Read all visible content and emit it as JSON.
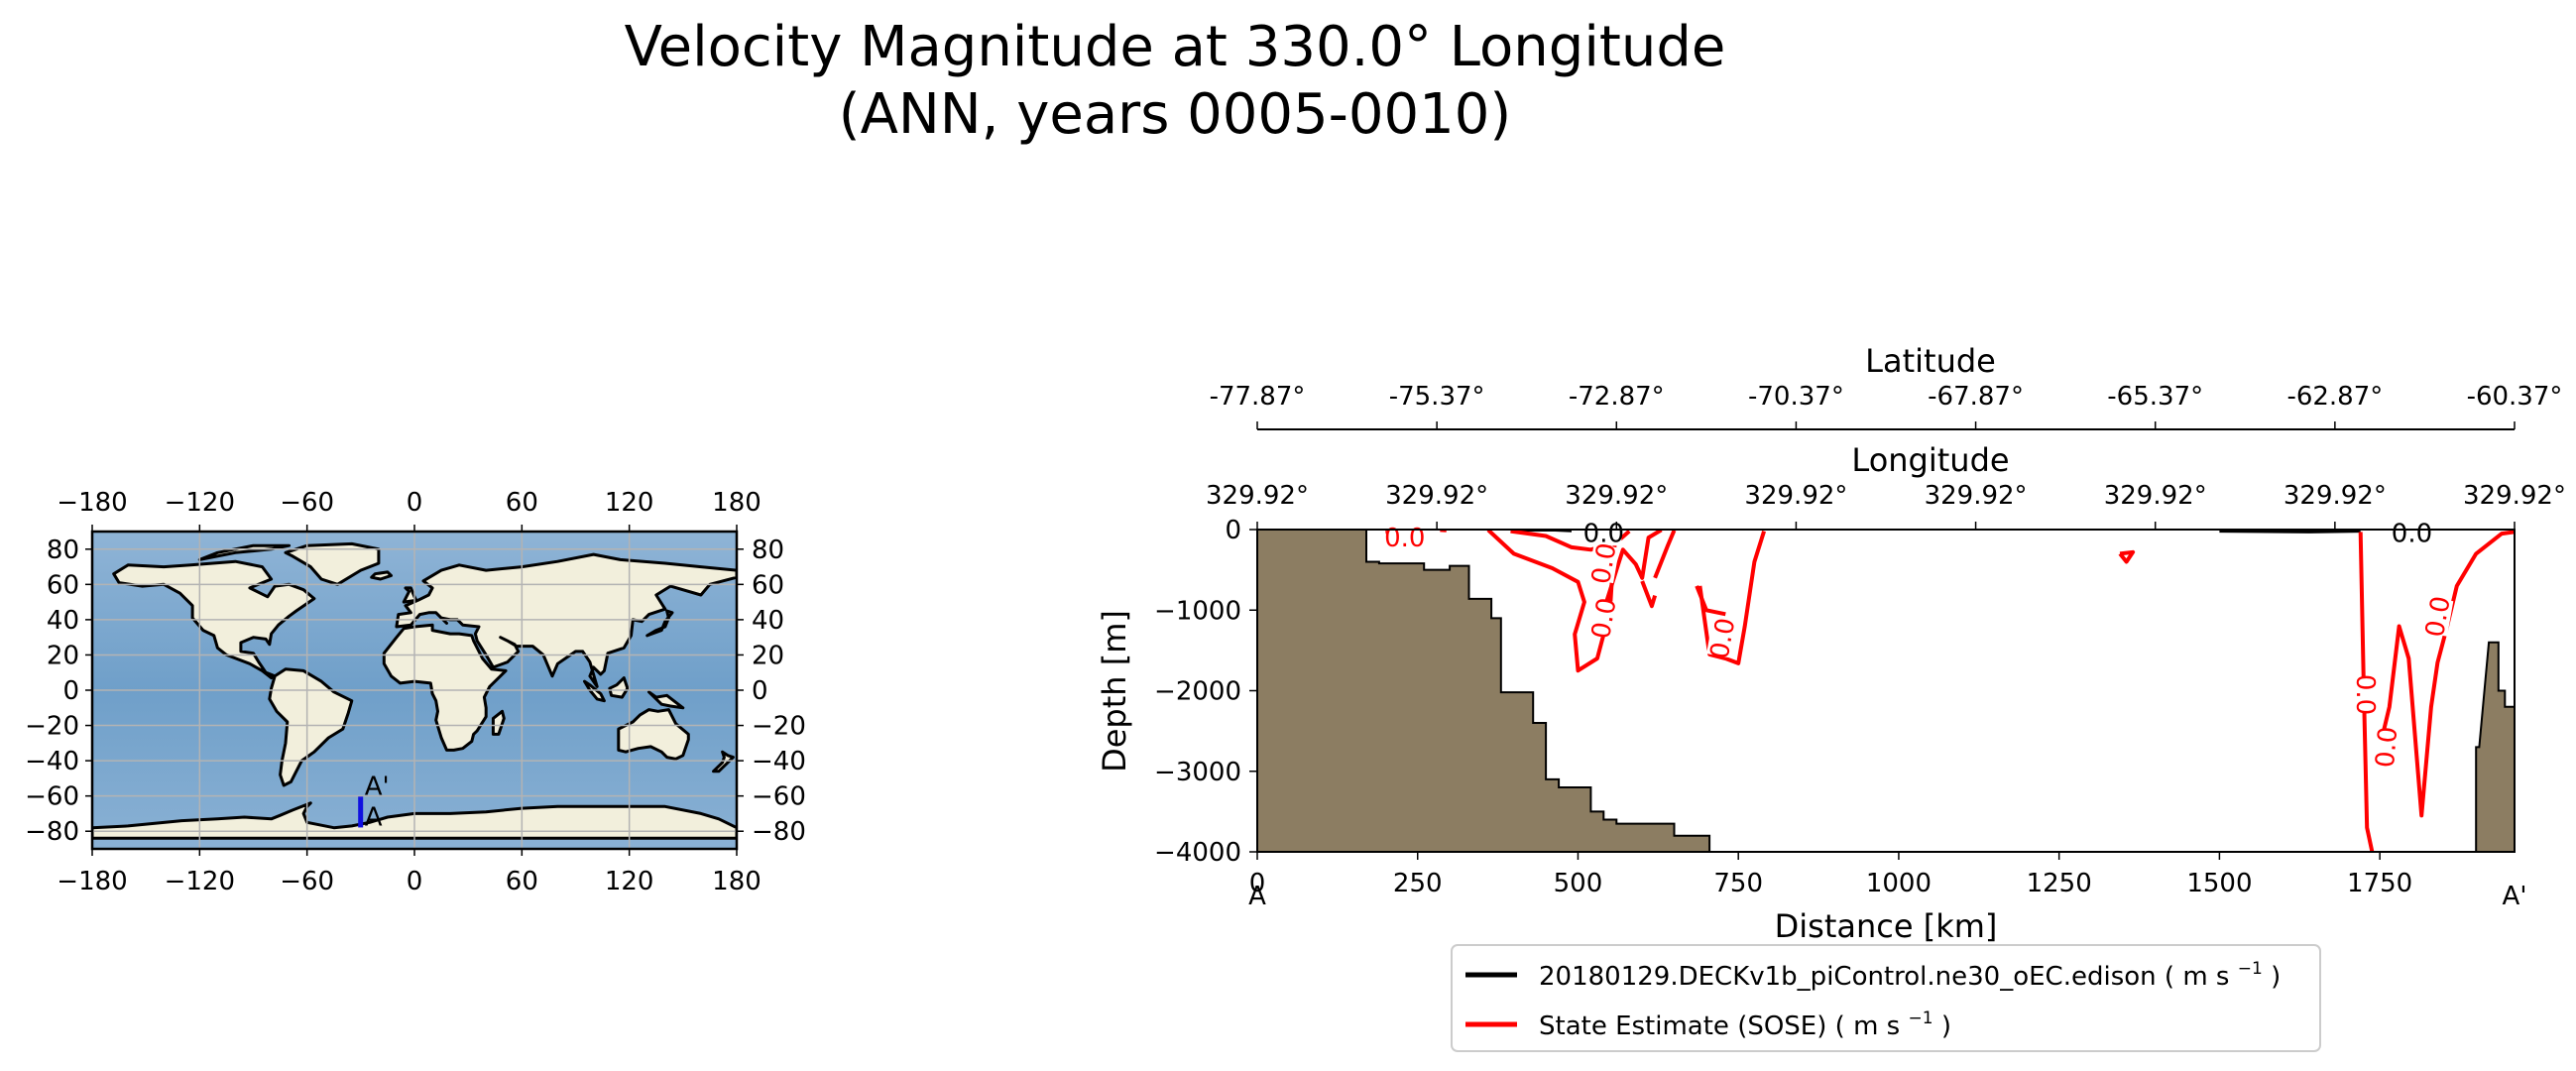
{
  "figure": {
    "title_line1": "Velocity Magnitude at 330.0° Longitude",
    "title_line2": "(ANN, years 0005-0010)"
  },
  "chart_data": [
    {
      "type": "map",
      "name": "inset-map",
      "xticks": [
        "−180",
        "−120",
        "−60",
        "0",
        "60",
        "120",
        "180"
      ],
      "xtick_values": [
        -180,
        -120,
        -60,
        0,
        60,
        120,
        180
      ],
      "yticks_left": [
        "80",
        "60",
        "40",
        "20",
        "0",
        "−20",
        "−40",
        "−60",
        "−80"
      ],
      "yticks_right": [
        "80",
        "60",
        "40",
        "20",
        "0",
        "−20",
        "−40",
        "−60",
        "−80"
      ],
      "ytick_values": [
        80,
        60,
        40,
        20,
        0,
        -20,
        -40,
        -60,
        -80
      ],
      "xlim": [
        -180,
        180
      ],
      "ylim": [
        -90,
        90
      ],
      "transect": {
        "lon": -30.08,
        "lat_start": -77.87,
        "lat_end": -60.37,
        "start_label": "A",
        "end_label": "A'"
      },
      "colors": {
        "ocean": "#7ba6cc",
        "land": "#f2efdc",
        "coast": "#000000",
        "transect": "#1010e0",
        "grid": "#b3b3b3"
      }
    },
    {
      "type": "line",
      "name": "transect-section",
      "xlabel": "Distance [km]",
      "ylabel": "Depth [m]",
      "xlim": [
        0,
        1960
      ],
      "ylim": [
        -4000,
        0
      ],
      "xticks": [
        "0",
        "250",
        "500",
        "750",
        "1000",
        "1250",
        "1500",
        "1750"
      ],
      "xtick_values": [
        0,
        250,
        500,
        750,
        1000,
        1250,
        1500,
        1750
      ],
      "yticks": [
        "0",
        "−1000",
        "−2000",
        "−3000",
        "−4000"
      ],
      "ytick_values": [
        0,
        -1000,
        -2000,
        -3000,
        -4000
      ],
      "endpoint_labels": {
        "start": "A",
        "end": "A'"
      },
      "longitude_axis": {
        "title": "Longitude",
        "ticks": [
          "329.92°",
          "329.92°",
          "329.92°",
          "329.92°",
          "329.92°",
          "329.92°",
          "329.92°",
          "329.92°"
        ]
      },
      "latitude_axis": {
        "title": "Latitude",
        "ticks": [
          "-77.87°",
          "-75.37°",
          "-72.87°",
          "-70.37°",
          "-67.87°",
          "-65.37°",
          "-62.87°",
          "-60.37°"
        ]
      },
      "bathymetry": {
        "color": "#8c7d62",
        "left": [
          [
            0,
            0
          ],
          [
            170,
            0
          ],
          [
            170,
            -400
          ],
          [
            190,
            -400
          ],
          [
            190,
            -420
          ],
          [
            260,
            -420
          ],
          [
            260,
            -500
          ],
          [
            300,
            -500
          ],
          [
            300,
            -450
          ],
          [
            330,
            -450
          ],
          [
            330,
            -860
          ],
          [
            365,
            -860
          ],
          [
            365,
            -1100
          ],
          [
            380,
            -1100
          ],
          [
            380,
            -2020
          ],
          [
            430,
            -2020
          ],
          [
            430,
            -2400
          ],
          [
            450,
            -2400
          ],
          [
            450,
            -3100
          ],
          [
            470,
            -3100
          ],
          [
            470,
            -3200
          ],
          [
            520,
            -3200
          ],
          [
            520,
            -3500
          ],
          [
            540,
            -3500
          ],
          [
            540,
            -3600
          ],
          [
            560,
            -3600
          ],
          [
            560,
            -3650
          ],
          [
            650,
            -3650
          ],
          [
            650,
            -3800
          ],
          [
            705,
            -3800
          ],
          [
            705,
            -4000
          ],
          [
            0,
            -4000
          ]
        ],
        "right": [
          [
            1960,
            -4000
          ],
          [
            1900,
            -4000
          ],
          [
            1900,
            -2700
          ],
          [
            1905,
            -2700
          ],
          [
            1920,
            -1400
          ],
          [
            1935,
            -1400
          ],
          [
            1935,
            -2000
          ],
          [
            1945,
            -2000
          ],
          [
            1945,
            -2200
          ],
          [
            1960,
            -2200
          ]
        ]
      },
      "series": [
        {
          "name": "20180129.DECKv1b_piControl.ne30_oEC.edison",
          "unit": "m s",
          "exponent": "−1",
          "color": "#000000",
          "contours": [
            [
              [
                410,
                -10
              ],
              [
                460,
                -5
              ],
              [
                490,
                -15
              ]
            ],
            [
              [
                1500,
                -20
              ],
              [
                1640,
                -30
              ],
              [
                1720,
                -20
              ]
            ]
          ],
          "labels": [
            {
              "text": "0.0",
              "x": 540,
              "y": -40,
              "angle": 0
            },
            {
              "text": "0.0",
              "x": 1800,
              "y": -40,
              "angle": 0
            }
          ]
        },
        {
          "name": "State Estimate (SOSE)",
          "unit": "m s",
          "exponent": "−1",
          "color": "#ff0000",
          "contours": [
            [
              [
                200,
                -30
              ],
              [
                230,
                -5
              ]
            ],
            [
              [
                285,
                -5
              ],
              [
                295,
                -10
              ]
            ],
            [
              [
                360,
                -5
              ],
              [
                400,
                -300
              ],
              [
                460,
                -480
              ],
              [
                500,
                -650
              ],
              [
                510,
                -900
              ],
              [
                495,
                -1300
              ],
              [
                500,
                -1750
              ],
              [
                530,
                -1600
              ],
              [
                550,
                -1000
              ],
              [
                555,
                -350
              ],
              [
                560,
                -10
              ]
            ],
            [
              [
                395,
                -20
              ],
              [
                450,
                -80
              ],
              [
                490,
                -220
              ],
              [
                520,
                -250
              ],
              [
                560,
                -160
              ],
              [
                580,
                -20
              ]
            ],
            [
              [
                545,
                -880
              ],
              [
                560,
                -500
              ],
              [
                570,
                -250
              ],
              [
                590,
                -430
              ],
              [
                600,
                -600
              ],
              [
                610,
                -100
              ],
              [
                630,
                -5
              ]
            ],
            [
              [
                600,
                -640
              ],
              [
                615,
                -950
              ],
              [
                620,
                -820
              ]
            ],
            [
              [
                620,
                -600
              ],
              [
                640,
                -200
              ],
              [
                650,
                -10
              ]
            ],
            [
              [
                685,
                -700
              ],
              [
                700,
                -1000
              ],
              [
                730,
                -1050
              ]
            ],
            [
              [
                690,
                -700
              ],
              [
                705,
                -1550
              ],
              [
                730,
                -1600
              ],
              [
                750,
                -1660
              ],
              [
                760,
                -1200
              ],
              [
                775,
                -400
              ],
              [
                790,
                -20
              ]
            ],
            [
              [
                1345,
                -300
              ],
              [
                1355,
                -400
              ],
              [
                1365,
                -280
              ],
              [
                1345,
                -300
              ]
            ],
            [
              [
                1720,
                -30
              ],
              [
                1725,
                -2000
              ],
              [
                1730,
                -3700
              ],
              [
                1738,
                -4000
              ]
            ],
            [
              [
                1750,
                -2700
              ],
              [
                1765,
                -2200
              ],
              [
                1780,
                -1200
              ],
              [
                1795,
                -1600
              ],
              [
                1815,
                -3550
              ],
              [
                1830,
                -2200
              ],
              [
                1840,
                -1650
              ],
              [
                1855,
                -1200
              ],
              [
                1870,
                -700
              ],
              [
                1900,
                -300
              ],
              [
                1940,
                -50
              ],
              [
                1960,
                -30
              ]
            ]
          ],
          "labels": [
            {
              "text": "0.0",
              "x": 230,
              "y": -100,
              "angle": 0
            },
            {
              "text": "0.0",
              "x": 540,
              "y": -420,
              "angle": -80
            },
            {
              "text": "0.0",
              "x": 540,
              "y": -1100,
              "angle": -80
            },
            {
              "text": "0.0",
              "x": 725,
              "y": -1350,
              "angle": -80
            },
            {
              "text": "0.0",
              "x": 1728,
              "y": -2050,
              "angle": 90
            },
            {
              "text": "0.0",
              "x": 1760,
              "y": -2700,
              "angle": -85
            },
            {
              "text": "0.0",
              "x": 1840,
              "y": -1080,
              "angle": -80
            }
          ]
        }
      ]
    }
  ]
}
